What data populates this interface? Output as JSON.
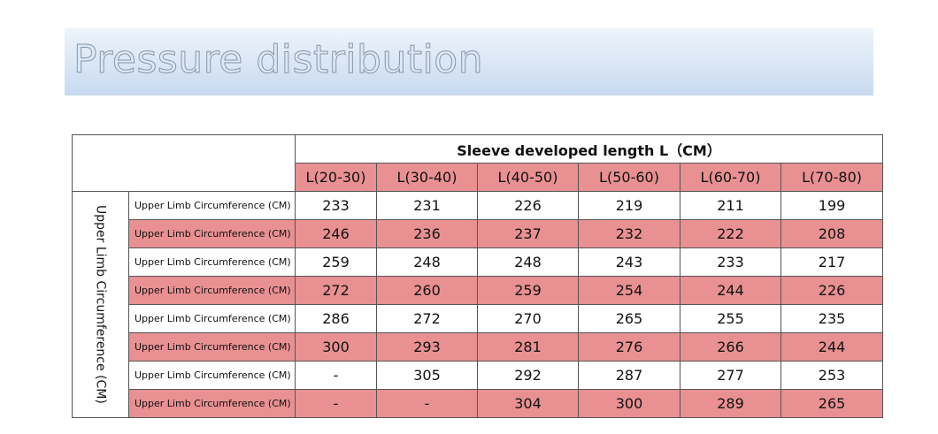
{
  "header": {
    "title": "Pressure distribution"
  },
  "table": {
    "column_group": "Sleeve developed length L（CM）",
    "columns": [
      "L(20-30)",
      "L(30-40)",
      "L(40-50)",
      "L(50-60)",
      "L(60-70)",
      "L(70-80)"
    ],
    "row_group": "Upper Limb Circumference (CM)",
    "rows": [
      {
        "label": "Upper Limb Circumference (CM)",
        "cells": [
          233,
          231,
          226,
          219,
          211,
          199
        ]
      },
      {
        "label": "Upper Limb Circumference (CM)",
        "cells": [
          246,
          236,
          237,
          232,
          222,
          208
        ]
      },
      {
        "label": "Upper Limb Circumference (CM)",
        "cells": [
          259,
          248,
          248,
          243,
          233,
          217
        ]
      },
      {
        "label": "Upper Limb Circumference (CM)",
        "cells": [
          272,
          260,
          259,
          254,
          244,
          226
        ]
      },
      {
        "label": "Upper Limb Circumference (CM)",
        "cells": [
          286,
          272,
          270,
          265,
          255,
          235
        ]
      },
      {
        "label": "Upper Limb Circumference (CM)",
        "cells": [
          300,
          293,
          281,
          276,
          266,
          244
        ]
      },
      {
        "label": "Upper Limb Circumference (CM)",
        "cells": [
          "-",
          305,
          292,
          287,
          277,
          253
        ]
      },
      {
        "label": "Upper Limb Circumference (CM)",
        "cells": [
          "-",
          "-",
          304,
          300,
          289,
          265
        ]
      }
    ]
  }
}
